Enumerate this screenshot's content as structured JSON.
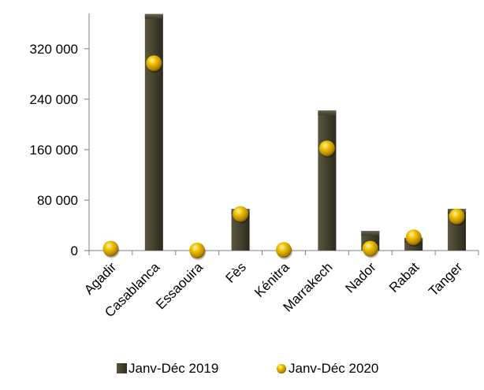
{
  "chart_data": {
    "type": "bar",
    "title": "",
    "xlabel": "",
    "ylabel": "",
    "ylim": [
      0,
      376000
    ],
    "yticks": [
      0,
      80000,
      160000,
      240000,
      320000
    ],
    "ytick_labels": [
      "0",
      "80 000",
      "160 000",
      "240 000",
      "320 000"
    ],
    "categories": [
      "Agadir",
      "Casablanca",
      "Essaouira",
      "Fès",
      "Kénitra",
      "Marrakech",
      "Nador",
      "Rabat",
      "Tanger"
    ],
    "series": [
      {
        "name": "Janv-Déc 2019",
        "render": "bar",
        "color": "#4a4733",
        "values": [
          0,
          375000,
          0,
          66000,
          0,
          222000,
          31000,
          20000,
          66000
        ]
      },
      {
        "name": "Janv-Déc 2020",
        "render": "marker",
        "color": "#e8b800",
        "values": [
          3000,
          297000,
          0,
          58000,
          1000,
          162000,
          3000,
          21000,
          54000
        ]
      }
    ],
    "grid": false,
    "legend_position": "bottom"
  }
}
